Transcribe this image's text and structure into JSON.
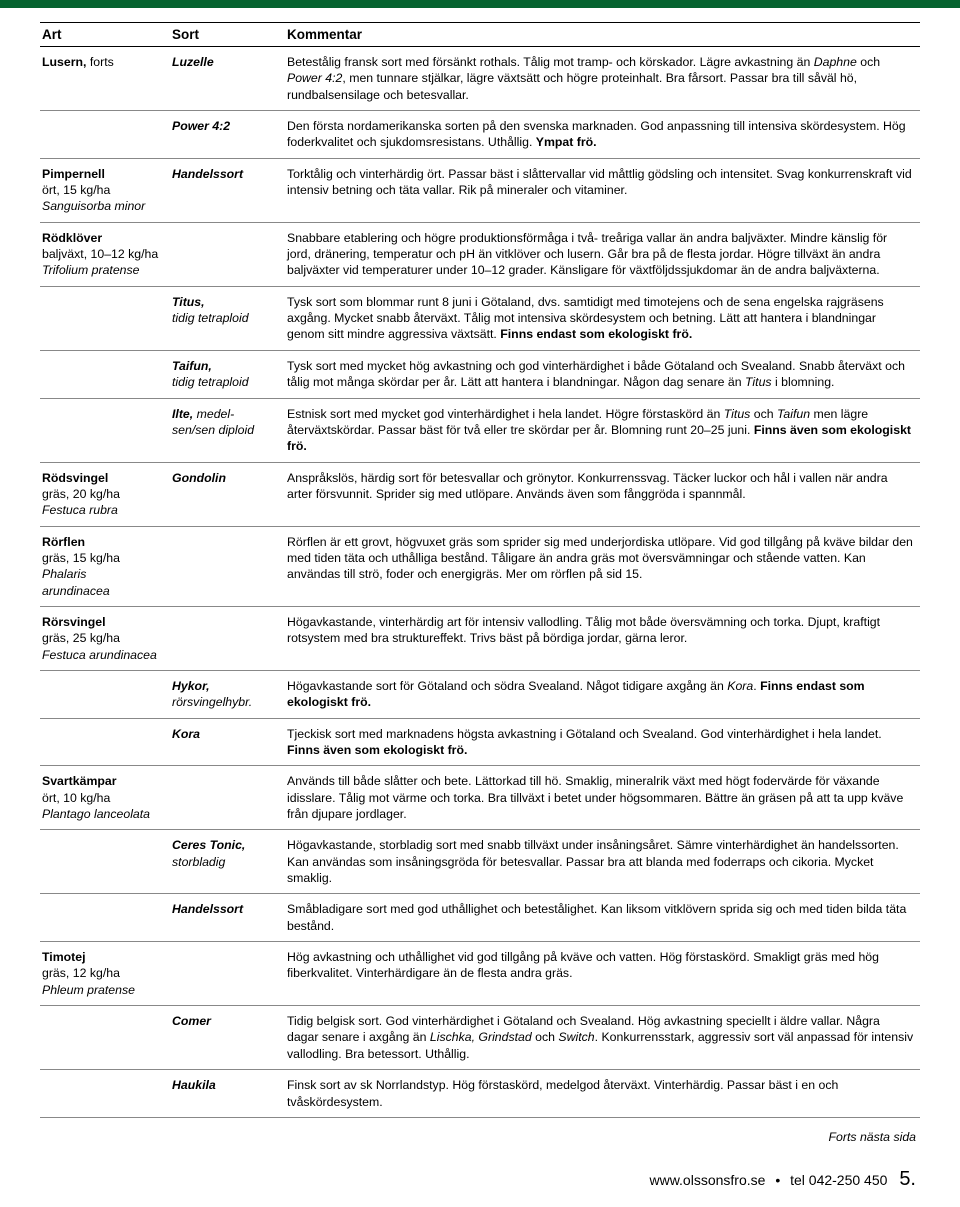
{
  "colors": {
    "topbar": "#06632f",
    "rule": "#000000",
    "text": "#000000"
  },
  "header": {
    "art": "Art",
    "sort": "Sort",
    "kommentar": "Kommentar"
  },
  "rows": [
    {
      "art_html": "<b>Lusern,</b> <span class='sub'>forts</span>",
      "sort_html": "Luzelle",
      "komm_html": "Betestålig fransk sort med försänkt rothals. Tålig mot tramp- och körskador. Lägre avkastning än <span class='i'>Daphne</span> och <span class='i'>Power 4:2</span>, men tunnare stjälkar, lägre växtsätt och högre proteinhalt. Bra fårsort. Passar bra till såväl hö, rundbalsensilage och betesvallar."
    },
    {
      "art_html": "",
      "sort_html": "Power 4:2",
      "komm_html": "Den första nordamerikanska sorten på den svenska marknaden. God anpassning till intensiva skördesystem. Hög foderkvalitet och sjukdomsresistans. Uthållig. <b>Ympat frö.</b>"
    },
    {
      "art_html": "<b>Pimpernell</b><br><span class='sub'>ört, 15 kg/ha</span><br><span class='latin'>Sanguisorba minor</span>",
      "sort_html": "Handelssort",
      "komm_html": "Torktålig och vinterhärdig ört. Passar bäst i slåttervallar vid måttlig gödsling och intensitet. Svag konkurrenskraft vid intensiv betning och täta vallar. Rik på mineraler och vitaminer."
    },
    {
      "art_html": "<b>Rödklöver</b><br><span class='sub'>baljväxt, 10–12 kg/ha</span><br><span class='latin'>Trifolium pratense</span>",
      "sort_html": "",
      "komm_html": "Snabbare etablering och högre produktionsförmåga i två- treåriga vallar än andra baljväxter. Mindre känslig för jord, dränering, temperatur och pH än vitklöver och lusern. Går bra på de flesta jordar. Högre tillväxt än andra baljväxter vid temperaturer under 10–12 grader. Känsligare för växtföljdssjukdomar än de andra baljväxterna."
    },
    {
      "art_html": "",
      "sort_html": "Titus,<br><span class='sub'>tidig tetraploid</span>",
      "komm_html": "Tysk sort som blommar runt 8 juni i Götaland, dvs. samtidigt med timotejens och de sena engelska rajgräsens axgång. Mycket snabb återväxt. Tålig mot intensiva skördesystem och betning. Lätt att hantera i blandningar genom sitt mindre aggressiva växtsätt. <b>Finns endast som ekologiskt frö.</b>"
    },
    {
      "art_html": "",
      "sort_html": "Taifun,<br><span class='sub'>tidig tetraploid</span>",
      "komm_html": "Tysk sort med mycket hög avkastning och god vinterhärdighet i både Götaland och Svealand. Snabb återväxt och tålig mot många skördar per år. Lätt att hantera i blandningar. Någon dag senare än <span class='i'>Titus</span> i blomning."
    },
    {
      "art_html": "",
      "sort_html": "Ilte, <span class='sub'>medel-<br>sen/sen diploid</span>",
      "komm_html": "Estnisk sort med mycket god vinterhärdighet i hela landet. Högre förstaskörd än <span class='i'>Titus</span> och <span class='i'>Taifun</span> men lägre återväxtskördar. Passar bäst för två eller tre skördar per år. Blomning runt 20–25 juni. <b>Finns även som ekologiskt frö.</b>"
    },
    {
      "art_html": "<b>Rödsvingel</b><br><span class='sub'>gräs, 20 kg/ha</span><br><span class='latin'>Festuca rubra</span>",
      "sort_html": "Gondolin",
      "komm_html": "Anspråkslös, härdig sort för betesvallar och grönytor. Konkurrenssvag. Täcker luckor och hål i vallen när andra arter försvunnit. Sprider sig med utlöpare. Används även som fånggröda i spannmål."
    },
    {
      "art_html": "<b>Rörflen</b><br><span class='sub'>gräs, 15 kg/ha</span><br><span class='latin'>Phalaris<br>arundinacea</span>",
      "sort_html": "",
      "komm_html": "Rörflen är ett grovt, högvuxet gräs som sprider sig med underjordiska utlöpare. Vid god tillgång på kväve bildar den med tiden täta och uthålliga bestånd. Tåligare än andra gräs mot översvämningar och stående vatten. Kan användas till strö, foder och energigräs. Mer om rörflen på sid 15."
    },
    {
      "art_html": "<b>Rörsvingel</b><br><span class='sub'>gräs, 25 kg/ha</span><br><span class='latin'>Festuca arundinacea</span>",
      "sort_html": "",
      "komm_html": "Högavkastande, vinterhärdig art för intensiv vallodling. Tålig mot både översvämning och torka. Djupt, kraftigt rotsystem med bra struktureffekt. Trivs bäst på bördiga jordar, gärna leror."
    },
    {
      "art_html": "",
      "sort_html": "Hykor,<br><span class='sub'>rörsvingelhybr.</span>",
      "komm_html": "Högavkastande sort för Götaland och södra Svealand. Något tidigare axgång än <span class='i'>Kora</span>. <b>Finns endast som ekologiskt frö.</b>"
    },
    {
      "art_html": "",
      "sort_html": "Kora",
      "komm_html": "Tjeckisk sort med marknadens högsta avkastning i Götaland och Svealand. God vinterhärdighet i hela landet. <b>Finns även som ekologiskt frö.</b>"
    },
    {
      "art_html": "<b>Svartkämpar</b><br><span class='sub'>ört, 10 kg/ha</span><br><span class='latin'>Plantago lanceolata</span>",
      "sort_html": "",
      "komm_html": "Används till både slåtter och bete. Lättorkad till hö. Smaklig, mineralrik växt med högt fodervärde för växande idisslare. Tålig mot värme och torka. Bra tillväxt i betet under högsommaren. Bättre än gräsen på att ta upp kväve från djupare jordlager."
    },
    {
      "art_html": "",
      "sort_html": "Ceres Tonic,<br><span class='sub'>storbladig</span>",
      "komm_html": "Högavkastande, storbladig sort med snabb tillväxt under insåningsåret. Sämre vinterhärdighet än handelssorten. Kan användas som insåningsgröda för betesvallar. Passar bra att blanda med foderraps och cikoria. Mycket smaklig."
    },
    {
      "art_html": "",
      "sort_html": "Handelssort",
      "komm_html": "Småbladigare sort med god uthållighet och betestålighet. Kan liksom vitklövern sprida sig och med tiden bilda täta bestånd."
    },
    {
      "art_html": "<b>Timotej</b><br><span class='sub'>gräs, 12 kg/ha</span><br><span class='latin'>Phleum pratense</span>",
      "sort_html": "",
      "komm_html": "Hög avkastning och uthållighet vid god tillgång på kväve och vatten. Hög förstaskörd. Smakligt gräs med hög fiberkvalitet. Vinterhärdigare än de flesta andra gräs."
    },
    {
      "art_html": "",
      "sort_html": "Comer",
      "komm_html": "Tidig belgisk sort. God vinterhärdighet i Götaland och Svealand. Hög avkastning speciellt i äldre vallar. Några dagar senare i axgång än <span class='i'>Lischka, Grindstad</span> och <span class='i'>Switch</span>. Konkurrensstark, aggressiv sort väl anpassad för intensiv vallodling. Bra betessort. Uthållig."
    },
    {
      "art_html": "",
      "sort_html": "Haukila",
      "komm_html": "Finsk sort av sk Norrlandstyp. Hög förstaskörd, medelgod återväxt. Vinterhärdig. Passar bäst i en och tvåskördesystem."
    }
  ],
  "forts": "Forts nästa sida",
  "footer": {
    "url": "www.olssonsfro.se",
    "tel": "tel 042-250 450",
    "page": "5."
  }
}
